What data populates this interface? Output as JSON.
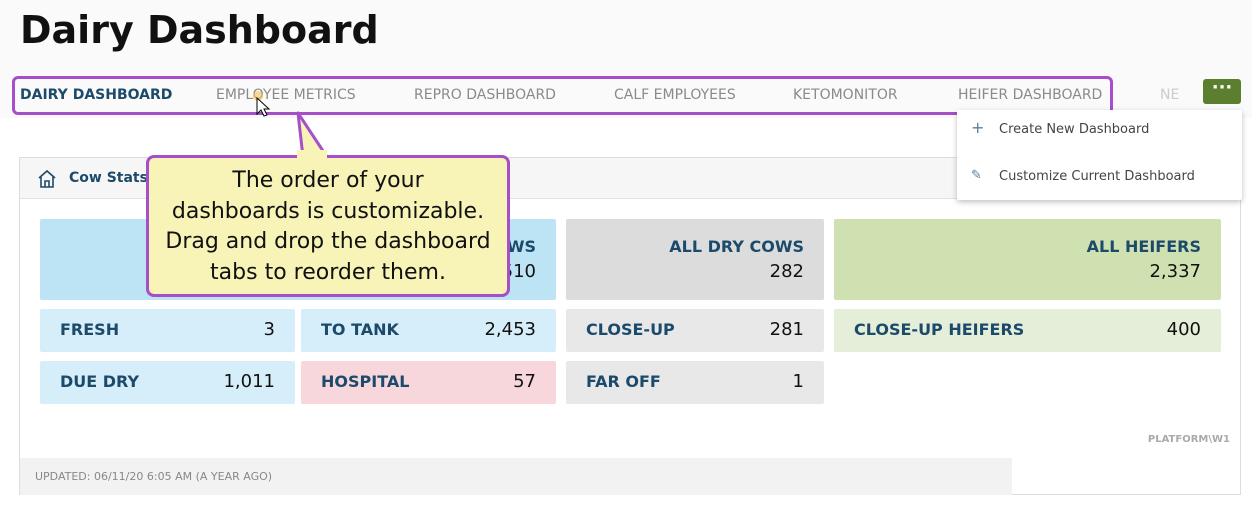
{
  "header": {
    "title": "Dairy Dashboard"
  },
  "tabs": [
    "DAIRY DASHBOARD",
    "EMPLOYEE METRICS",
    "REPRO DASHBOARD",
    "CALF EMPLOYEES",
    "KETOMONITOR",
    "HEIFER DASHBOARD",
    "NE"
  ],
  "menu": [
    "Create New Dashboard",
    "Customize Current Dashboard"
  ],
  "panel": {
    "title": "Cow Stats",
    "big_tiles": [
      {
        "label": "WS",
        "value": "510"
      },
      {
        "label": "ALL DRY COWS",
        "value": "282"
      },
      {
        "label": "ALL HEIFERS",
        "value": "2,337"
      }
    ],
    "small_tiles": [
      {
        "label": "FRESH",
        "value": "3"
      },
      {
        "label": "TO TANK",
        "value": "2,453"
      },
      {
        "label": "CLOSE-UP",
        "value": "281"
      },
      {
        "label": "CLOSE-UP HEIFERS",
        "value": "400"
      },
      {
        "label": "DUE DRY",
        "value": "1,011"
      },
      {
        "label": "HOSPITAL",
        "value": "57"
      },
      {
        "label": "FAR OFF",
        "value": "1"
      }
    ],
    "platform": "PLATFORM\\W1",
    "updated": "UPDATED: 06/11/20 6:05 AM (A YEAR AGO)"
  },
  "callout": {
    "lines": [
      "The order of your",
      "dashboards is customizable.",
      "Drag and drop the dashboard",
      "tabs to reorder them."
    ]
  }
}
